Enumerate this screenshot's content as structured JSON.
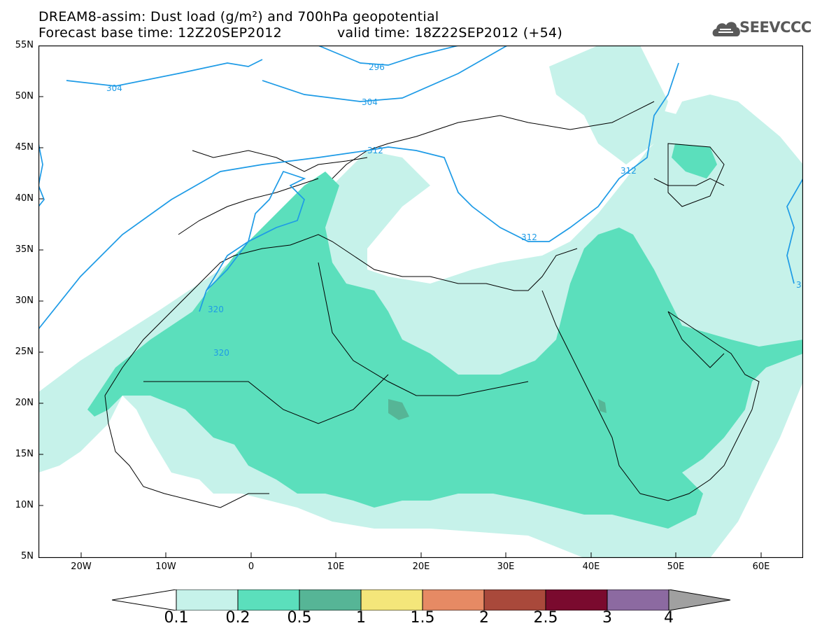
{
  "header": {
    "title": "DREAM8-assim: Dust load (g/m²) and 700hPa geopotential",
    "base_time": "Forecast base time: 12Z20SEP2012",
    "valid_time": "valid time: 18Z22SEP2012 (+54)"
  },
  "logo": {
    "text": "SEEVCCC",
    "icon": "cloud-logo-icon"
  },
  "map": {
    "projection": "lat-lon",
    "lon_range": [
      -25,
      65
    ],
    "lat_range": [
      5,
      55
    ],
    "lat_labels": [
      "55N",
      "50N",
      "45N",
      "40N",
      "35N",
      "30N",
      "25N",
      "20N",
      "15N",
      "10N",
      "5N"
    ],
    "lon_labels": [
      "20W",
      "10W",
      "0",
      "10E",
      "20E",
      "30E",
      "40E",
      "50E",
      "60E"
    ],
    "contour_labels": [
      "304",
      "296",
      "304",
      "312",
      "312",
      "312",
      "320",
      "320",
      "3"
    ],
    "colors": {
      "0.1-0.2": "#c6f2ea",
      "0.2-0.5": "#5bdfbc",
      "0.5-1": "#56b596",
      "contour": "#1e9be6"
    }
  },
  "colorbar": {
    "labels": [
      "0.1",
      "0.2",
      "0.5",
      "1",
      "1.5",
      "2",
      "2.5",
      "3",
      "4"
    ],
    "colors": [
      "#ffffff",
      "#c6f2ea",
      "#5bdfbc",
      "#56b596",
      "#f4e67a",
      "#e68a64",
      "#a9493b",
      "#7a0a2e",
      "#8c6aa1",
      "#a0a0a0"
    ]
  }
}
